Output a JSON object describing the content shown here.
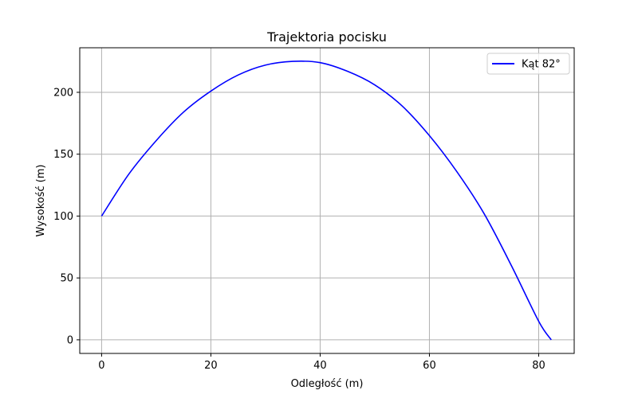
{
  "chart_data": {
    "type": "line",
    "title": "Trajektoria pocisku",
    "xlabel": "Odległość (m)",
    "ylabel": "Wysokość (m)",
    "xlim": [
      -4,
      86.5
    ],
    "ylim": [
      -11,
      236
    ],
    "xticks": [
      0,
      20,
      40,
      60,
      80
    ],
    "yticks": [
      0,
      50,
      100,
      150,
      200
    ],
    "grid": true,
    "legend_position": "top-right",
    "series": [
      {
        "name": "Kąt 82°",
        "color": "#0000ff",
        "x": [
          0,
          5,
          10,
          15,
          20,
          25,
          30,
          35,
          40,
          45,
          50,
          55,
          60,
          65,
          70,
          75,
          80,
          82.3
        ],
        "y": [
          100,
          134,
          161,
          184,
          201,
          214,
          222,
          225,
          224,
          217,
          206,
          189,
          165,
          136,
          102,
          60,
          15,
          0
        ]
      }
    ]
  }
}
